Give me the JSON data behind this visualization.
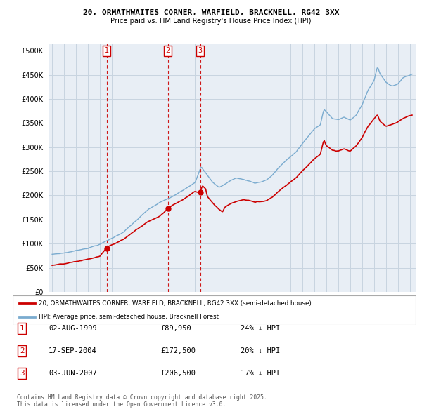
{
  "title1": "20, ORMATHWAITES CORNER, WARFIELD, BRACKNELL, RG42 3XX",
  "title2": "Price paid vs. HM Land Registry's House Price Index (HPI)",
  "red_label": "20, ORMATHWAITES CORNER, WARFIELD, BRACKNELL, RG42 3XX (semi-detached house)",
  "blue_label": "HPI: Average price, semi-detached house, Bracknell Forest",
  "footer": "Contains HM Land Registry data © Crown copyright and database right 2025.\nThis data is licensed under the Open Government Licence v3.0.",
  "transactions": [
    {
      "num": "1",
      "date": "02-AUG-1999",
      "price": "£89,950",
      "pct": "24% ↓ HPI",
      "year": 1999.583
    },
    {
      "num": "2",
      "date": "17-SEP-2004",
      "price": "£172,500",
      "pct": "20% ↓ HPI",
      "year": 2004.708
    },
    {
      "num": "3",
      "date": "03-JUN-2007",
      "price": "£206,500",
      "pct": "17% ↓ HPI",
      "year": 2007.417
    }
  ],
  "trans_prices": [
    89950,
    172500,
    206500
  ],
  "yticks": [
    0,
    50000,
    100000,
    150000,
    200000,
    250000,
    300000,
    350000,
    400000,
    450000,
    500000
  ],
  "ylim": [
    0,
    515000
  ],
  "xlim_start": 1994.7,
  "xlim_end": 2025.5,
  "red_color": "#cc0000",
  "blue_color": "#7aabcf",
  "vline_color": "#cc0000",
  "background_color": "#ffffff",
  "chart_bg": "#e8eef5",
  "grid_color": "#c8d4e0"
}
